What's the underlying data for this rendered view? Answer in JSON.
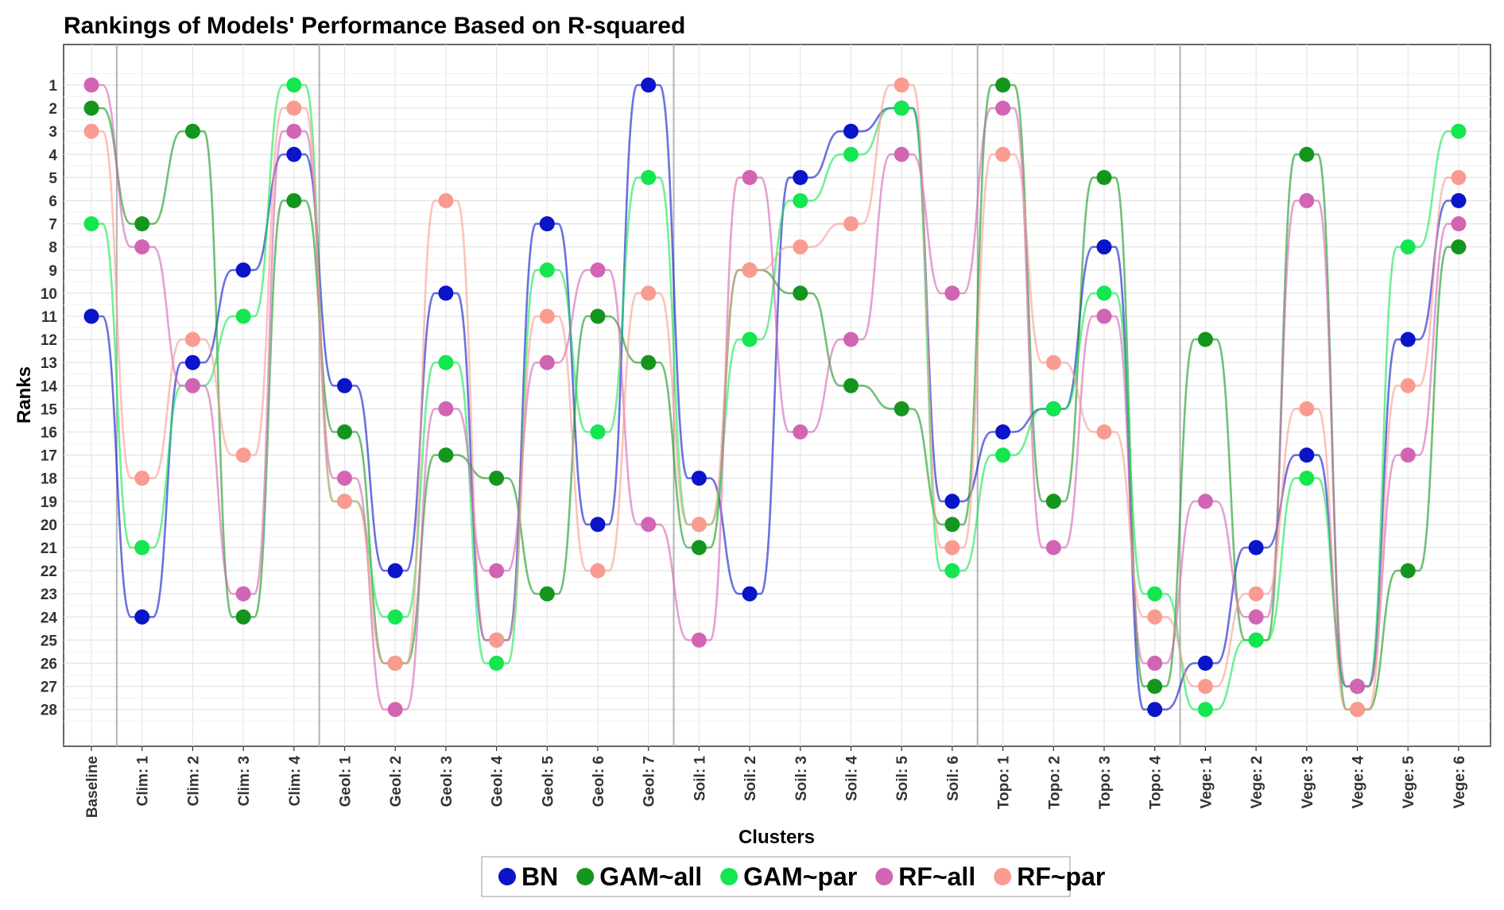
{
  "chart_data": {
    "type": "line",
    "title": "Rankings of Models' Performance Based on R-squared",
    "xlabel": "Clusters",
    "ylabel": "Ranks",
    "ylim": [
      1,
      28
    ],
    "y_reversed": true,
    "y_ticks": [
      1,
      2,
      3,
      4,
      5,
      6,
      7,
      8,
      9,
      10,
      11,
      12,
      13,
      14,
      15,
      16,
      17,
      18,
      19,
      20,
      21,
      22,
      23,
      24,
      25,
      26,
      27,
      28
    ],
    "categories": [
      "Baseline",
      "Clim: 1",
      "Clim: 2",
      "Clim: 3",
      "Clim: 4",
      "Geol: 1",
      "Geol: 2",
      "Geol: 3",
      "Geol: 4",
      "Geol: 5",
      "Geol: 6",
      "Geol: 7",
      "Soil: 1",
      "Soil: 2",
      "Soil: 3",
      "Soil: 4",
      "Soil: 5",
      "Soil: 6",
      "Topo: 1",
      "Topo: 2",
      "Topo: 3",
      "Topo: 4",
      "Vege: 1",
      "Vege: 2",
      "Vege: 3",
      "Vege: 4",
      "Vege: 5",
      "Vege: 6"
    ],
    "group_separators_after": [
      0,
      4,
      11,
      17,
      21
    ],
    "grid": true,
    "legend_position": "bottom",
    "series": [
      {
        "name": "BN",
        "color": "#0a14c8",
        "values": [
          11,
          24,
          13,
          9,
          4,
          14,
          22,
          10,
          25,
          7,
          20,
          1,
          18,
          23,
          5,
          3,
          2,
          19,
          16,
          15,
          8,
          28,
          26,
          21,
          17,
          27,
          12,
          6
        ]
      },
      {
        "name": "GAM~all",
        "color": "#14961e",
        "values": [
          2,
          7,
          3,
          24,
          6,
          16,
          26,
          17,
          18,
          23,
          11,
          13,
          21,
          9,
          10,
          14,
          15,
          20,
          1,
          19,
          5,
          27,
          12,
          25,
          4,
          28,
          22,
          8
        ]
      },
      {
        "name": "GAM~par",
        "color": "#14e650",
        "values": [
          7,
          21,
          14,
          11,
          1,
          19,
          24,
          13,
          26,
          9,
          16,
          5,
          20,
          12,
          6,
          4,
          2,
          22,
          17,
          15,
          10,
          23,
          28,
          25,
          18,
          27,
          8,
          3
        ]
      },
      {
        "name": "RF~all",
        "color": "#d264b4",
        "values": [
          1,
          8,
          14,
          23,
          3,
          18,
          28,
          15,
          22,
          13,
          9,
          20,
          25,
          5,
          16,
          12,
          4,
          10,
          2,
          21,
          11,
          26,
          19,
          24,
          6,
          27,
          17,
          7
        ]
      },
      {
        "name": "RF~par",
        "color": "#fa9b91",
        "values": [
          3,
          18,
          12,
          17,
          2,
          19,
          26,
          6,
          25,
          11,
          22,
          10,
          20,
          9,
          8,
          7,
          1,
          21,
          4,
          13,
          16,
          24,
          27,
          23,
          15,
          28,
          14,
          5
        ]
      }
    ]
  }
}
